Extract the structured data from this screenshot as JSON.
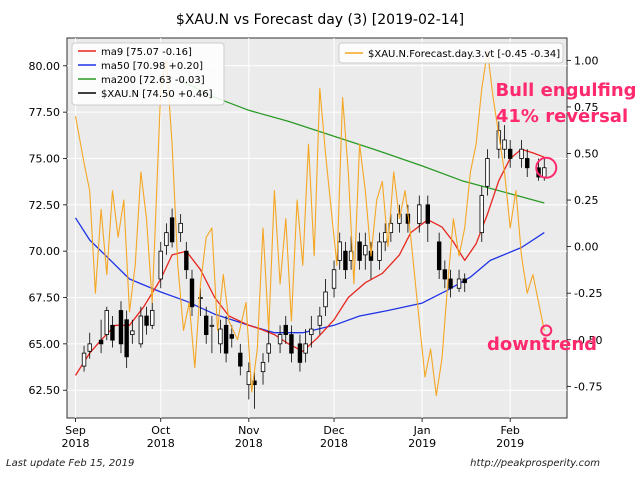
{
  "footer": {
    "left": "Last update Feb 15, 2019",
    "right": "http://peakprosperity.com"
  },
  "chart_data": {
    "type": "line",
    "title": "$XAU.N vs Forecast day (3)  [2019-02-14]",
    "x_ticks": [
      {
        "date": "2018-09-01",
        "label": [
          "Sep",
          "2018"
        ]
      },
      {
        "date": "2018-10-01",
        "label": [
          "Oct",
          "2018"
        ]
      },
      {
        "date": "2018-11-01",
        "label": [
          "Nov",
          "2018"
        ]
      },
      {
        "date": "2018-12-01",
        "label": [
          "Dec",
          "2018"
        ]
      },
      {
        "date": "2019-01-01",
        "label": [
          "Jan",
          "2019"
        ]
      },
      {
        "date": "2019-02-01",
        "label": [
          "Feb",
          "2019"
        ]
      }
    ],
    "x_range": [
      "2018-08-29",
      "2019-02-21"
    ],
    "y_left": {
      "range": [
        61.0,
        81.5
      ],
      "ticks": [
        62.5,
        65.0,
        67.5,
        70.0,
        72.5,
        75.0,
        77.5,
        80.0
      ]
    },
    "y_right": {
      "range": [
        -0.92,
        1.12
      ],
      "ticks": [
        -0.75,
        -0.5,
        -0.25,
        0.0,
        0.25,
        0.5,
        0.75,
        1.0
      ]
    },
    "legend_left": {
      "placement": "top-left",
      "entries": [
        {
          "label": "ma9 [75.07 -0.16]",
          "color": "#e8251e"
        },
        {
          "label": "ma50 [70.98 +0.20]",
          "color": "#1f33e6"
        },
        {
          "label": "ma200 [72.63 -0.03]",
          "color": "#2a9a25"
        },
        {
          "label": "$XAU.N [74.50 +0.46]",
          "color": "#000000"
        }
      ]
    },
    "legend_right": {
      "placement": "top-right",
      "entries": [
        {
          "label": "$XAU.N.Forecast.day.3.vt [-0.45 -0.34]",
          "color": "#f5a623"
        }
      ]
    },
    "annotations": [
      {
        "text": "Bull engulfing",
        "color": "#ff2a6d"
      },
      {
        "text": "41% reversal",
        "color": "#ff2a6d"
      },
      {
        "text": "downtrend",
        "color": "#ff2a6d"
      }
    ],
    "markers": [
      {
        "date": "2019-02-13",
        "value": 74.5,
        "axis": "left",
        "color": "#ff2a6d"
      },
      {
        "date": "2019-02-13",
        "value": -0.45,
        "axis": "right",
        "color": "#ff2a6d"
      }
    ],
    "series": [
      {
        "name": "ma200",
        "axis": "left",
        "color": "#2a9a25",
        "points": [
          [
            "2018-10-08",
            79.2
          ],
          [
            "2018-10-20",
            78.3
          ],
          [
            "2018-11-01",
            77.6
          ],
          [
            "2018-11-15",
            77.0
          ],
          [
            "2018-12-01",
            76.2
          ],
          [
            "2018-12-15",
            75.5
          ],
          [
            "2019-01-01",
            74.6
          ],
          [
            "2019-01-15",
            73.8
          ],
          [
            "2019-02-01",
            73.1
          ],
          [
            "2019-02-13",
            72.6
          ]
        ]
      },
      {
        "name": "ma50",
        "axis": "left",
        "color": "#1f33e6",
        "points": [
          [
            "2018-09-01",
            71.8
          ],
          [
            "2018-09-06",
            70.6
          ],
          [
            "2018-09-12",
            69.7
          ],
          [
            "2018-09-20",
            68.5
          ],
          [
            "2018-10-01",
            67.8
          ],
          [
            "2018-10-10",
            67.3
          ],
          [
            "2018-10-20",
            66.6
          ],
          [
            "2018-11-01",
            66.0
          ],
          [
            "2018-11-10",
            65.6
          ],
          [
            "2018-11-20",
            65.6
          ],
          [
            "2018-12-01",
            66.0
          ],
          [
            "2018-12-10",
            66.5
          ],
          [
            "2018-12-20",
            66.8
          ],
          [
            "2019-01-01",
            67.2
          ],
          [
            "2019-01-10",
            67.9
          ],
          [
            "2019-01-18",
            68.6
          ],
          [
            "2019-01-25",
            69.5
          ],
          [
            "2019-02-05",
            70.2
          ],
          [
            "2019-02-13",
            71.0
          ]
        ]
      },
      {
        "name": "ma9",
        "axis": "left",
        "color": "#e8251e",
        "points": [
          [
            "2018-09-01",
            63.3
          ],
          [
            "2018-09-06",
            64.5
          ],
          [
            "2018-09-10",
            65.2
          ],
          [
            "2018-09-15",
            66.0
          ],
          [
            "2018-09-20",
            66.0
          ],
          [
            "2018-09-25",
            67.0
          ],
          [
            "2018-10-01",
            68.5
          ],
          [
            "2018-10-05",
            69.8
          ],
          [
            "2018-10-10",
            70.0
          ],
          [
            "2018-10-15",
            69.0
          ],
          [
            "2018-10-20",
            67.5
          ],
          [
            "2018-10-25",
            66.5
          ],
          [
            "2018-11-01",
            66.0
          ],
          [
            "2018-11-05",
            65.8
          ],
          [
            "2018-11-10",
            65.5
          ],
          [
            "2018-11-15",
            65.0
          ],
          [
            "2018-11-20",
            64.6
          ],
          [
            "2018-11-25",
            65.3
          ],
          [
            "2018-12-01",
            66.3
          ],
          [
            "2018-12-06",
            67.5
          ],
          [
            "2018-12-12",
            68.3
          ],
          [
            "2018-12-18",
            68.8
          ],
          [
            "2018-12-24",
            69.8
          ],
          [
            "2018-12-28",
            71.0
          ],
          [
            "2019-01-03",
            71.7
          ],
          [
            "2019-01-08",
            71.3
          ],
          [
            "2019-01-12",
            70.5
          ],
          [
            "2019-01-16",
            69.5
          ],
          [
            "2019-01-20",
            70.4
          ],
          [
            "2019-01-24",
            72.0
          ],
          [
            "2019-01-28",
            73.8
          ],
          [
            "2019-02-01",
            75.0
          ],
          [
            "2019-02-05",
            75.5
          ],
          [
            "2019-02-09",
            75.3
          ],
          [
            "2019-02-13",
            75.07
          ]
        ]
      },
      {
        "name": "$XAU.N.Forecast.day.3.vt",
        "axis": "right",
        "color": "#f5a623",
        "points": [
          [
            "2018-09-01",
            0.7
          ],
          [
            "2018-09-04",
            0.45
          ],
          [
            "2018-09-06",
            0.3
          ],
          [
            "2018-09-08",
            -0.25
          ],
          [
            "2018-09-10",
            0.2
          ],
          [
            "2018-09-12",
            -0.15
          ],
          [
            "2018-09-14",
            0.3
          ],
          [
            "2018-09-16",
            0.05
          ],
          [
            "2018-09-18",
            0.25
          ],
          [
            "2018-09-20",
            -0.35
          ],
          [
            "2018-09-22",
            -0.1
          ],
          [
            "2018-09-24",
            0.4
          ],
          [
            "2018-09-26",
            0.15
          ],
          [
            "2018-09-28",
            -0.3
          ],
          [
            "2018-10-01",
            0.85
          ],
          [
            "2018-10-03",
            1.0
          ],
          [
            "2018-10-05",
            0.55
          ],
          [
            "2018-10-07",
            -0.1
          ],
          [
            "2018-10-09",
            -0.45
          ],
          [
            "2018-10-11",
            -0.3
          ],
          [
            "2018-10-13",
            -0.65
          ],
          [
            "2018-10-15",
            -0.2
          ],
          [
            "2018-10-17",
            0.05
          ],
          [
            "2018-10-19",
            0.1
          ],
          [
            "2018-10-21",
            -0.45
          ],
          [
            "2018-10-23",
            -0.15
          ],
          [
            "2018-10-25",
            -0.4
          ],
          [
            "2018-10-28",
            -0.5
          ],
          [
            "2018-10-31",
            -0.3
          ],
          [
            "2018-11-02",
            -0.78
          ],
          [
            "2018-11-04",
            -0.55
          ],
          [
            "2018-11-06",
            0.1
          ],
          [
            "2018-11-08",
            -0.45
          ],
          [
            "2018-11-10",
            0.3
          ],
          [
            "2018-11-12",
            -0.2
          ],
          [
            "2018-11-14",
            0.15
          ],
          [
            "2018-11-16",
            -0.4
          ],
          [
            "2018-11-18",
            0.25
          ],
          [
            "2018-11-20",
            -0.1
          ],
          [
            "2018-11-22",
            0.55
          ],
          [
            "2018-11-24",
            -0.05
          ],
          [
            "2018-11-26",
            0.85
          ],
          [
            "2018-11-28",
            0.5
          ],
          [
            "2018-11-30",
            0.2
          ],
          [
            "2018-12-02",
            -0.1
          ],
          [
            "2018-12-04",
            0.8
          ],
          [
            "2018-12-06",
            0.4
          ],
          [
            "2018-12-08",
            -0.2
          ],
          [
            "2018-12-10",
            0.55
          ],
          [
            "2018-12-12",
            0.3
          ],
          [
            "2018-12-14",
            -0.05
          ],
          [
            "2018-12-16",
            0.25
          ],
          [
            "2018-12-18",
            0.35
          ],
          [
            "2018-12-20",
            0.0
          ],
          [
            "2018-12-22",
            0.4
          ],
          [
            "2018-12-24",
            0.15
          ],
          [
            "2018-12-26",
            0.3
          ],
          [
            "2018-12-28",
            0.05
          ],
          [
            "2018-12-30",
            -0.25
          ],
          [
            "2019-01-02",
            -0.7
          ],
          [
            "2019-01-04",
            -0.55
          ],
          [
            "2019-01-06",
            -0.8
          ],
          [
            "2019-01-08",
            -0.6
          ],
          [
            "2019-01-10",
            -0.2
          ],
          [
            "2019-01-12",
            0.15
          ],
          [
            "2019-01-14",
            -0.05
          ],
          [
            "2019-01-16",
            0.1
          ],
          [
            "2019-01-18",
            0.4
          ],
          [
            "2019-01-20",
            0.55
          ],
          [
            "2019-01-22",
            0.85
          ],
          [
            "2019-01-24",
            1.05
          ],
          [
            "2019-01-26",
            0.8
          ],
          [
            "2019-01-28",
            0.6
          ],
          [
            "2019-01-30",
            0.4
          ],
          [
            "2019-02-01",
            0.1
          ],
          [
            "2019-02-03",
            0.3
          ],
          [
            "2019-02-05",
            -0.05
          ],
          [
            "2019-02-07",
            -0.25
          ],
          [
            "2019-02-09",
            -0.15
          ],
          [
            "2019-02-11",
            -0.3
          ],
          [
            "2019-02-13",
            -0.45
          ]
        ]
      }
    ],
    "candles": [
      [
        "2018-09-04",
        63.8,
        64.5,
        63.5,
        64.9
      ],
      [
        "2018-09-06",
        64.6,
        65.0,
        64.2,
        65.6
      ],
      [
        "2018-09-10",
        65.2,
        65.0,
        64.5,
        66.3
      ],
      [
        "2018-09-12",
        65.5,
        66.8,
        65.2,
        67.0
      ],
      [
        "2018-09-14",
        66.0,
        65.2,
        64.8,
        66.5
      ],
      [
        "2018-09-17",
        66.8,
        65.0,
        64.5,
        67.3
      ],
      [
        "2018-09-19",
        66.3,
        64.3,
        63.7,
        66.8
      ],
      [
        "2018-09-21",
        65.5,
        65.7,
        65.0,
        66.3
      ],
      [
        "2018-09-24",
        65.0,
        66.5,
        64.8,
        67.0
      ],
      [
        "2018-09-26",
        66.5,
        66.0,
        65.5,
        67.0
      ],
      [
        "2018-09-28",
        66.0,
        66.8,
        65.8,
        67.3
      ],
      [
        "2018-10-01",
        68.5,
        70.0,
        68.0,
        70.5
      ],
      [
        "2018-10-03",
        70.3,
        71.0,
        69.8,
        71.5
      ],
      [
        "2018-10-05",
        71.8,
        70.5,
        70.2,
        72.3
      ],
      [
        "2018-10-08",
        71.0,
        71.5,
        70.5,
        72.0
      ],
      [
        "2018-10-10",
        70.0,
        69.0,
        68.5,
        70.5
      ],
      [
        "2018-10-12",
        68.5,
        67.0,
        66.5,
        69.0
      ],
      [
        "2018-10-15",
        67.5,
        67.5,
        66.5,
        68.0
      ],
      [
        "2018-10-17",
        66.5,
        65.5,
        65.0,
        67.0
      ],
      [
        "2018-10-19",
        66.0,
        66.0,
        64.5,
        66.5
      ],
      [
        "2018-10-22",
        65.0,
        65.8,
        64.5,
        66.3
      ],
      [
        "2018-10-24",
        66.0,
        64.5,
        64.0,
        66.5
      ],
      [
        "2018-10-26",
        65.5,
        65.3,
        64.8,
        66.0
      ],
      [
        "2018-10-29",
        64.5,
        63.8,
        63.3,
        65.0
      ],
      [
        "2018-11-01",
        62.8,
        63.5,
        62.0,
        64.0
      ],
      [
        "2018-11-03",
        63.0,
        62.8,
        61.5,
        63.5
      ],
      [
        "2018-11-06",
        63.5,
        64.0,
        62.8,
        64.5
      ],
      [
        "2018-11-08",
        64.5,
        65.0,
        64.0,
        66.0
      ],
      [
        "2018-11-12",
        65.0,
        65.5,
        64.5,
        66.0
      ],
      [
        "2018-11-14",
        66.0,
        65.5,
        65.0,
        66.5
      ],
      [
        "2018-11-16",
        65.5,
        64.5,
        64.0,
        66.0
      ],
      [
        "2018-11-19",
        65.0,
        64.0,
        63.5,
        65.5
      ],
      [
        "2018-11-21",
        64.5,
        65.0,
        64.0,
        65.8
      ],
      [
        "2018-11-23",
        65.5,
        65.8,
        64.8,
        66.5
      ],
      [
        "2018-11-26",
        66.0,
        66.5,
        65.5,
        67.0
      ],
      [
        "2018-11-28",
        67.0,
        67.8,
        66.5,
        68.5
      ],
      [
        "2018-12-01",
        68.0,
        69.0,
        67.5,
        69.5
      ],
      [
        "2018-12-03",
        69.5,
        70.5,
        69.0,
        71.0
      ],
      [
        "2018-12-05",
        70.0,
        69.0,
        68.5,
        70.5
      ],
      [
        "2018-12-07",
        69.5,
        70.0,
        69.0,
        70.8
      ],
      [
        "2018-12-10",
        70.5,
        69.5,
        69.0,
        71.0
      ],
      [
        "2018-12-12",
        69.8,
        70.3,
        69.0,
        71.0
      ],
      [
        "2018-12-14",
        70.0,
        69.5,
        68.5,
        70.5
      ],
      [
        "2018-12-17",
        69.5,
        70.5,
        69.0,
        71.0
      ],
      [
        "2018-12-19",
        70.5,
        71.0,
        70.0,
        71.5
      ],
      [
        "2018-12-21",
        71.0,
        71.5,
        70.5,
        72.0
      ],
      [
        "2018-12-24",
        71.5,
        72.0,
        71.0,
        72.5
      ],
      [
        "2018-12-27",
        72.0,
        71.5,
        71.0,
        72.5
      ],
      [
        "2018-12-31",
        71.5,
        72.5,
        71.0,
        73.0
      ],
      [
        "2019-01-03",
        72.5,
        71.5,
        70.5,
        73.0
      ],
      [
        "2019-01-07",
        70.5,
        69.0,
        68.5,
        71.0
      ],
      [
        "2019-01-09",
        69.0,
        68.5,
        68.0,
        69.5
      ],
      [
        "2019-01-11",
        68.5,
        68.0,
        67.5,
        69.0
      ],
      [
        "2019-01-14",
        68.0,
        68.5,
        67.8,
        69.0
      ],
      [
        "2019-01-16",
        68.5,
        68.3,
        67.8,
        68.8
      ],
      [
        "2019-01-22",
        71.0,
        73.0,
        70.5,
        73.5
      ],
      [
        "2019-01-24",
        73.5,
        75.0,
        73.0,
        75.5
      ],
      [
        "2019-01-28",
        75.5,
        76.5,
        75.0,
        77.0
      ],
      [
        "2019-01-30",
        75.5,
        76.0,
        75.0,
        76.8
      ],
      [
        "2019-02-01",
        75.5,
        75.0,
        74.5,
        76.0
      ],
      [
        "2019-02-05",
        75.0,
        75.5,
        74.5,
        76.0
      ],
      [
        "2019-02-07",
        75.0,
        74.5,
        74.0,
        75.5
      ],
      [
        "2019-02-11",
        74.5,
        74.0,
        73.8,
        75.0
      ],
      [
        "2019-02-13",
        74.0,
        74.5,
        73.8,
        75.0
      ]
    ]
  }
}
